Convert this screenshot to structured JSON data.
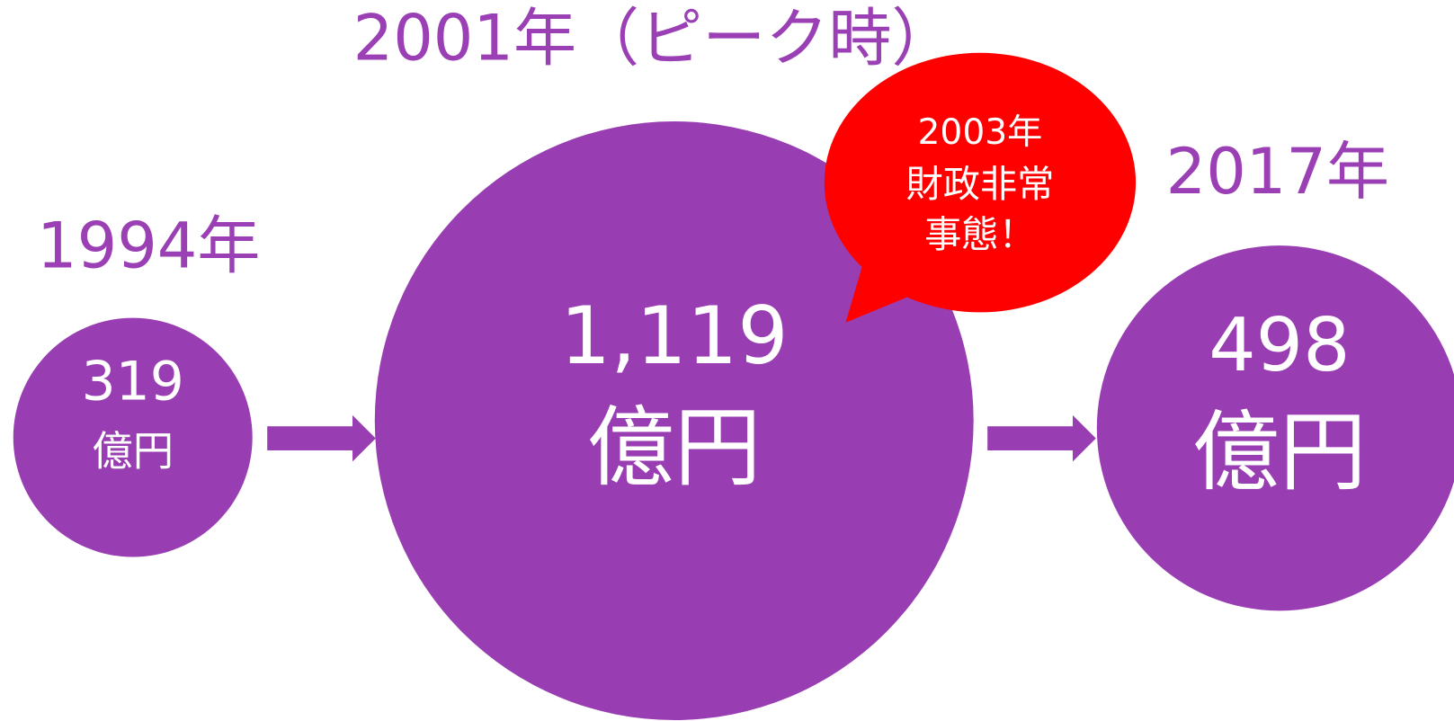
{
  "items": [
    {
      "year": "1994年",
      "value": "319",
      "unit": "億円"
    },
    {
      "year": "2001年（ピーク時）",
      "value": "1,119",
      "unit": "億円"
    },
    {
      "year": "2017年",
      "value": "498",
      "unit": "億円"
    }
  ],
  "callout": {
    "lines": [
      "2003年",
      "財政非常",
      "事態！"
    ]
  }
}
